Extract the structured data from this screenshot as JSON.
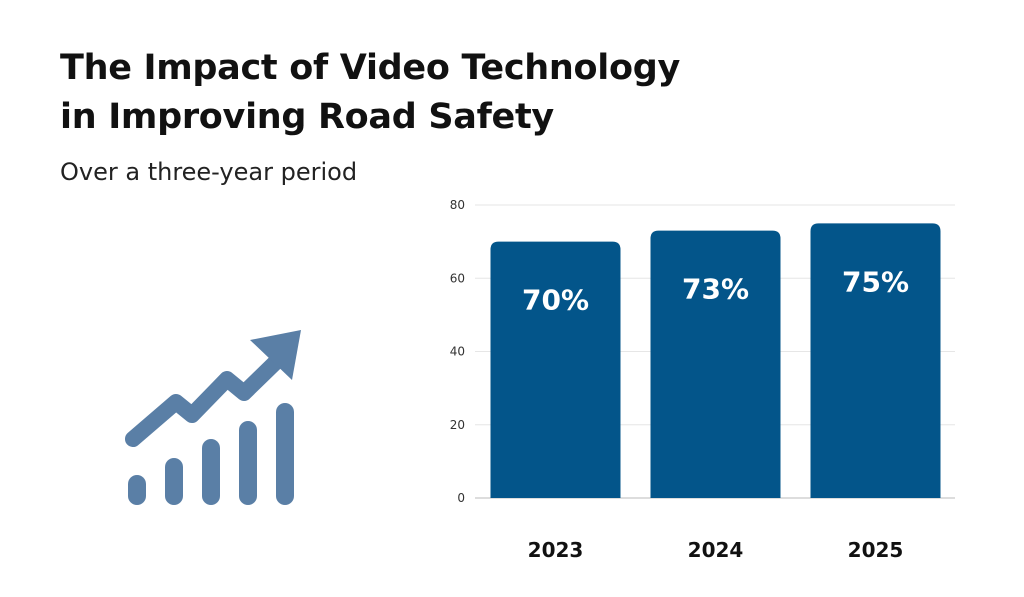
{
  "header": {
    "title_line1": "The Impact of Video Technology",
    "title_line2": "in Improving Road Safety",
    "subtitle": "Over a three-year period"
  },
  "icon": {
    "name": "growth-chart-icon",
    "color": "#5a7fa6"
  },
  "colors": {
    "bar": "#03558a",
    "grid": "#e6e6e6",
    "axis": "#bbbbbb"
  },
  "chart_data": {
    "type": "bar",
    "title": "The Impact of Video Technology in Improving Road Safety",
    "subtitle": "Over a three-year period",
    "categories": [
      "2023",
      "2024",
      "2025"
    ],
    "values": [
      70,
      73,
      75
    ],
    "data_labels": [
      "70%",
      "73%",
      "75%"
    ],
    "xlabel": "",
    "ylabel": "",
    "ylim": [
      0,
      80
    ],
    "yticks": [
      0,
      20,
      40,
      60,
      80
    ],
    "grid": true
  }
}
